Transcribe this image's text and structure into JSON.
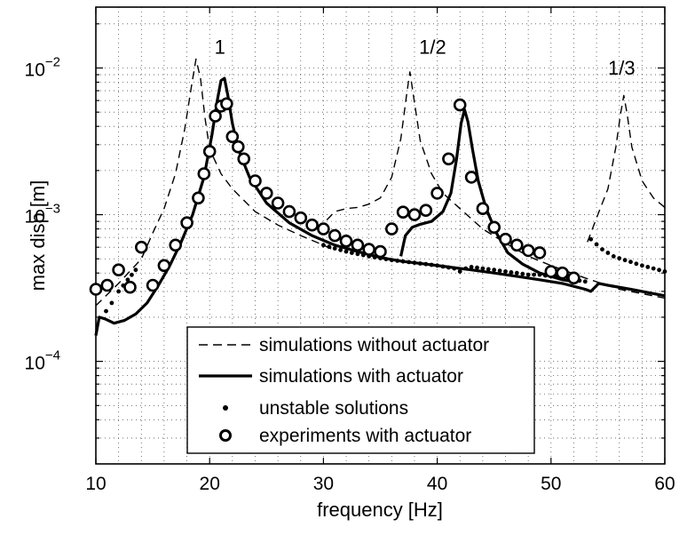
{
  "chart_data": {
    "type": "line",
    "title": "",
    "xlabel": "frequency [Hz]",
    "ylabel": "max disp [m]",
    "xlim": [
      10,
      60
    ],
    "ylim": [
      2e-05,
      0.026
    ],
    "yscale": "log",
    "grid": true,
    "legend_position": "bottom-center",
    "xticks": [
      {
        "value": 10,
        "label": "10"
      },
      {
        "value": 20,
        "label": "20"
      },
      {
        "value": 30,
        "label": "30"
      },
      {
        "value": 40,
        "label": "40"
      },
      {
        "value": 50,
        "label": "50"
      },
      {
        "value": 60,
        "label": "60"
      }
    ],
    "yticks": [
      {
        "value": 0.0001,
        "base": "10",
        "exp": "−4"
      },
      {
        "value": 0.001,
        "base": "10",
        "exp": "−3"
      },
      {
        "value": 0.01,
        "base": "10",
        "exp": "−2"
      }
    ],
    "annotations": [
      {
        "text": "1",
        "x": 20.9,
        "y": 0.0125
      },
      {
        "text": "1/2",
        "x": 39.6,
        "y": 0.0125
      },
      {
        "text": "1/3",
        "x": 56.2,
        "y": 0.009
      }
    ],
    "series": [
      {
        "name": "simulations without actuator",
        "style": "dashed",
        "segments": [
          [
            [
              10,
              0.00024
            ],
            [
              12,
              0.00034
            ],
            [
              14,
              0.0005
            ],
            [
              15,
              0.00075
            ],
            [
              16,
              0.0011
            ],
            [
              17,
              0.0019
            ],
            [
              17.8,
              0.0038
            ],
            [
              18.4,
              0.0075
            ],
            [
              18.8,
              0.0115
            ],
            [
              19.2,
              0.0085
            ],
            [
              19.6,
              0.0045
            ],
            [
              20,
              0.0028
            ],
            [
              21,
              0.0019
            ],
            [
              22,
              0.0015
            ],
            [
              24,
              0.00105
            ],
            [
              26,
              0.00085
            ],
            [
              28,
              0.00072
            ],
            [
              30,
              0.00062
            ],
            [
              31,
              0.00057
            ]
          ],
          [
            [
              30.3,
              0.00092
            ],
            [
              31,
              0.00105
            ],
            [
              32,
              0.0011
            ],
            [
              33,
              0.00112
            ],
            [
              34,
              0.00118
            ],
            [
              35,
              0.0013
            ],
            [
              36,
              0.0018
            ],
            [
              36.8,
              0.0033
            ],
            [
              37.3,
              0.0065
            ],
            [
              37.6,
              0.0094
            ],
            [
              38,
              0.0058
            ],
            [
              38.5,
              0.0032
            ],
            [
              39.5,
              0.0019
            ],
            [
              40.5,
              0.0014
            ],
            [
              42,
              0.0011
            ],
            [
              44,
              0.0008
            ],
            [
              46,
              0.00064
            ],
            [
              48,
              0.00052
            ],
            [
              50,
              0.00045
            ],
            [
              53,
              0.00037
            ],
            [
              56,
              0.00031
            ],
            [
              60,
              0.00027
            ]
          ],
          [
            [
              53.2,
              0.00065
            ],
            [
              54,
              0.00095
            ],
            [
              55,
              0.0015
            ],
            [
              55.7,
              0.0029
            ],
            [
              56.1,
              0.0048
            ],
            [
              56.4,
              0.0065
            ],
            [
              56.7,
              0.0048
            ],
            [
              57.1,
              0.0029
            ],
            [
              58,
              0.0017
            ],
            [
              59,
              0.0013
            ],
            [
              60,
              0.00112
            ]
          ]
        ]
      },
      {
        "name": "simulations with actuator",
        "style": "solid",
        "segments": [
          [
            [
              10,
              0.00015
            ],
            [
              10.3,
              0.0002
            ],
            [
              10.8,
              0.000195
            ],
            [
              11.6,
              0.000182
            ],
            [
              12.5,
              0.00019
            ],
            [
              13.5,
              0.00021
            ],
            [
              14.5,
              0.00025
            ],
            [
              15.5,
              0.00033
            ],
            [
              16.5,
              0.00045
            ],
            [
              17.5,
              0.00065
            ],
            [
              18.5,
              0.001
            ],
            [
              19.5,
              0.0018
            ],
            [
              20.2,
              0.0035
            ],
            [
              20.7,
              0.0062
            ],
            [
              21,
              0.0082
            ],
            [
              21.3,
              0.0085
            ],
            [
              21.6,
              0.0065
            ],
            [
              22,
              0.0042
            ],
            [
              22.5,
              0.0028
            ],
            [
              23.5,
              0.0018
            ],
            [
              25,
              0.0012
            ],
            [
              27,
              0.00088
            ],
            [
              29,
              0.00072
            ],
            [
              31,
              0.00062
            ],
            [
              33,
              0.00056
            ],
            [
              35,
              0.00051
            ],
            [
              37,
              0.00048
            ],
            [
              39,
              0.00046
            ],
            [
              41,
              0.00044
            ],
            [
              43,
              0.00042
            ],
            [
              45,
              0.0004
            ],
            [
              47,
              0.00038
            ],
            [
              49,
              0.00036
            ],
            [
              51,
              0.00034
            ],
            [
              53,
              0.00031
            ],
            [
              53.5,
              0.0003
            ],
            [
              54.2,
              0.00034
            ],
            [
              55,
              0.00033
            ],
            [
              57,
              0.00031
            ],
            [
              60,
              0.00028
            ]
          ],
          [
            [
              36.8,
              0.00052
            ],
            [
              37.2,
              0.00072
            ],
            [
              37.8,
              0.00082
            ],
            [
              38.5,
              0.00086
            ],
            [
              39.5,
              0.0009
            ],
            [
              40.5,
              0.00105
            ],
            [
              41.2,
              0.0014
            ],
            [
              41.7,
              0.0024
            ],
            [
              42.1,
              0.0042
            ],
            [
              42.4,
              0.0052
            ],
            [
              42.7,
              0.0043
            ],
            [
              43.1,
              0.0028
            ],
            [
              43.6,
              0.0017
            ],
            [
              44.3,
              0.0011
            ],
            [
              45.2,
              0.00075
            ],
            [
              46.2,
              0.00055
            ],
            [
              47.5,
              0.00046
            ],
            [
              49,
              0.0004
            ],
            [
              51,
              0.00036
            ],
            [
              52,
              0.00035
            ]
          ]
        ]
      },
      {
        "name": "unstable solutions",
        "style": "dots",
        "segments": [
          [
            [
              10.9,
              0.00022
            ],
            [
              11.4,
              0.00025
            ],
            [
              12,
              0.0003
            ],
            [
              12.8,
              0.00036
            ],
            [
              13.5,
              0.00042
            ]
          ],
          [
            [
              30,
              0.00062
            ],
            [
              32,
              0.00056
            ],
            [
              34,
              0.00052
            ],
            [
              36,
              0.00049
            ],
            [
              38,
              0.00047
            ],
            [
              40,
              0.00045
            ],
            [
              41.5,
              0.00043
            ],
            [
              42,
              0.00041
            ],
            [
              42.5,
              0.00043
            ],
            [
              43,
              0.00044
            ],
            [
              44,
              0.00043
            ],
            [
              45,
              0.00042
            ],
            [
              46,
              0.00041
            ],
            [
              47,
              0.0004
            ],
            [
              48,
              0.00039
            ],
            [
              49,
              0.00039
            ],
            [
              50,
              0.00038
            ],
            [
              51,
              0.00037
            ],
            [
              52,
              0.00036
            ],
            [
              53,
              0.00035
            ]
          ],
          [
            [
              53.5,
              0.00068
            ],
            [
              54.5,
              0.00058
            ],
            [
              55.5,
              0.00052
            ],
            [
              56.5,
              0.00049
            ],
            [
              58,
              0.00045
            ],
            [
              59,
              0.00043
            ],
            [
              60,
              0.00041
            ]
          ]
        ]
      },
      {
        "name": "experiments with actuator",
        "style": "circles",
        "points": [
          [
            10,
            0.00031
          ],
          [
            11,
            0.00033
          ],
          [
            12,
            0.00042
          ],
          [
            13,
            0.00032
          ],
          [
            14,
            0.0006
          ],
          [
            15,
            0.00033
          ],
          [
            16,
            0.00045
          ],
          [
            17,
            0.00062
          ],
          [
            18,
            0.00088
          ],
          [
            19,
            0.0013
          ],
          [
            19.5,
            0.0019
          ],
          [
            20,
            0.0027
          ],
          [
            20.5,
            0.0047
          ],
          [
            21,
            0.0055
          ],
          [
            21.5,
            0.0057
          ],
          [
            22,
            0.0034
          ],
          [
            22.5,
            0.0029
          ],
          [
            23,
            0.0024
          ],
          [
            24,
            0.0017
          ],
          [
            25,
            0.0014
          ],
          [
            26,
            0.0012
          ],
          [
            27,
            0.00105
          ],
          [
            28,
            0.00095
          ],
          [
            29,
            0.00085
          ],
          [
            30,
            0.0008
          ],
          [
            31,
            0.00072
          ],
          [
            32,
            0.00066
          ],
          [
            33,
            0.00062
          ],
          [
            34,
            0.00058
          ],
          [
            35,
            0.00056
          ],
          [
            36,
            0.0008
          ],
          [
            37,
            0.00104
          ],
          [
            38,
            0.001
          ],
          [
            39,
            0.00107
          ],
          [
            40,
            0.0014
          ],
          [
            41,
            0.0024
          ],
          [
            42,
            0.0056
          ],
          [
            43,
            0.0018
          ],
          [
            44,
            0.0011
          ],
          [
            45,
            0.00082
          ],
          [
            46,
            0.00068
          ],
          [
            47,
            0.00062
          ],
          [
            48,
            0.00057
          ],
          [
            49,
            0.00055
          ],
          [
            50,
            0.00041
          ],
          [
            51,
            0.0004
          ],
          [
            52,
            0.00037
          ]
        ]
      }
    ]
  }
}
